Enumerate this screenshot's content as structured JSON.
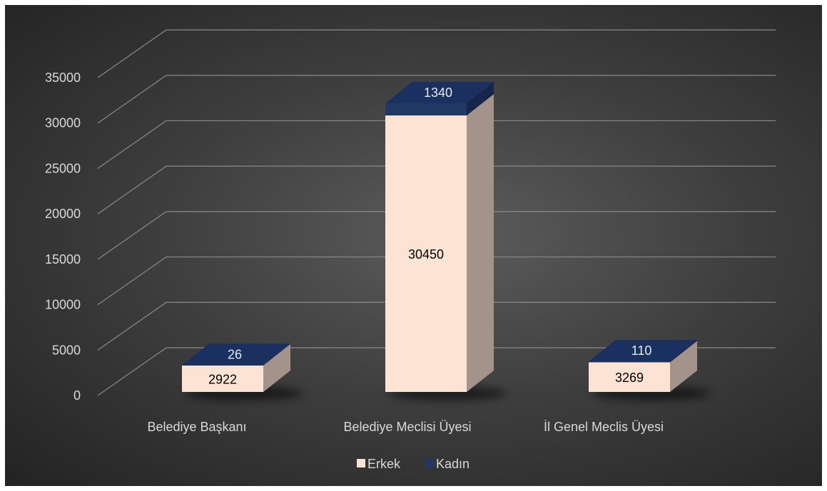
{
  "chart_data": {
    "type": "bar",
    "stacked": true,
    "three_d": true,
    "categories": [
      "Belediye Başkanı",
      "Belediye Meclisi Üyesi",
      "İl Genel Meclis Üyesi"
    ],
    "series": [
      {
        "name": "Erkek",
        "values": [
          2922,
          30450,
          3269
        ],
        "color": "#fde3d3"
      },
      {
        "name": "Kadın",
        "values": [
          26,
          1340,
          110
        ],
        "color": "#1f3864"
      }
    ],
    "yticks": [
      "0",
      "5000",
      "10000",
      "15000",
      "20000",
      "25000",
      "30000",
      "35000"
    ],
    "ylim": [
      0,
      35000
    ],
    "grid": true,
    "legend": "bottom",
    "title": "",
    "xlabel": "",
    "ylabel": ""
  }
}
